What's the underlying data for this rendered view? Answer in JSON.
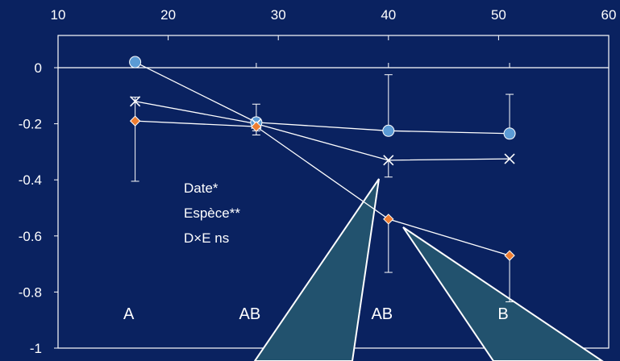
{
  "chart_data": {
    "type": "scatter",
    "x_ticks": [
      10,
      20,
      30,
      40,
      50,
      60
    ],
    "y_ticks": [
      0,
      -0.2,
      -0.4,
      -0.6,
      -0.8,
      -1
    ],
    "y_tick_labels": [
      "0",
      "-0.2",
      "-0.4",
      "-0.6",
      "-0.8",
      "-1"
    ],
    "xlim": [
      10,
      60
    ],
    "ylim": [
      -1,
      0.05
    ],
    "x_axis_position": "top",
    "grid": false,
    "series": [
      {
        "marker": "circle",
        "color": "#5b9bd5",
        "x": [
          17,
          28,
          40,
          51
        ],
        "y": [
          0.02,
          -0.195,
          -0.225,
          -0.235
        ],
        "err_lo": [
          0.02,
          0.03,
          0.0,
          0.0
        ],
        "err_hi": [
          0.015,
          0.065,
          0.2,
          0.14
        ]
      },
      {
        "marker": "cross",
        "color": "#ffffff",
        "x": [
          17,
          28,
          40,
          51
        ],
        "y": [
          -0.12,
          -0.2,
          -0.33,
          -0.325
        ],
        "err_lo": [
          0.0,
          0.0,
          0.06,
          0.0
        ],
        "err_hi": [
          0.0,
          0.0,
          0.0,
          0.0
        ]
      },
      {
        "marker": "diamond",
        "color": "#ed7d31",
        "x": [
          17,
          28,
          40,
          51
        ],
        "y": [
          -0.19,
          -0.21,
          -0.54,
          -0.67
        ],
        "err_lo": [
          0.215,
          0.03,
          0.19,
          0.165
        ],
        "err_hi": [
          0.085,
          0.0,
          0.0,
          0.0
        ]
      }
    ],
    "annotation": [
      "Date*",
      "Espèce**",
      "D×E ns"
    ],
    "group_labels": [
      {
        "x": 17,
        "label": "A"
      },
      {
        "x": 28,
        "label": "AB"
      },
      {
        "x": 40,
        "label": "AB"
      },
      {
        "x": 51,
        "label": "B"
      }
    ]
  }
}
